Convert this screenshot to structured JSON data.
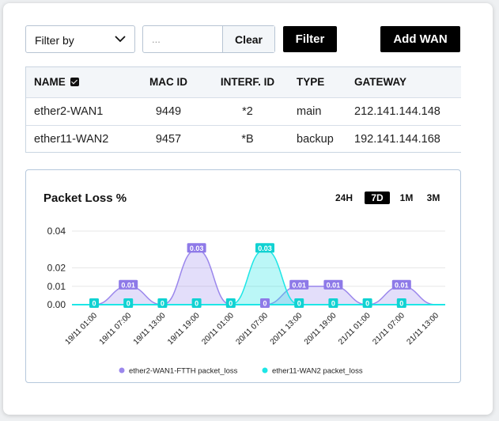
{
  "filters": {
    "select_label": "Filter by",
    "search_placeholder": "...",
    "clear_label": "Clear",
    "filter_label": "Filter",
    "add_wan_label": "Add WAN"
  },
  "table": {
    "headers": {
      "name": "NAME",
      "mac": "MAC ID",
      "interf": "INTERF. ID",
      "type": "TYPE",
      "gateway": "GATEWAY"
    },
    "rows": [
      {
        "name": "ether2-WAN1",
        "mac": "9449",
        "interf": "*2",
        "type": "main",
        "gateway": "212.141.144.148"
      },
      {
        "name": "ether11-WAN2",
        "mac": "9457",
        "interf": "*B",
        "type": "backup",
        "gateway": "192.141.144.168"
      }
    ]
  },
  "chart": {
    "title": "Packet Loss %",
    "ranges": [
      "24H",
      "7D",
      "1M",
      "3M"
    ],
    "active_range": "7D"
  },
  "colors": {
    "series1": "#9b87ec",
    "series2": "#1ee6e6",
    "label1": "#8e7ae8",
    "label2": "#11d2d2"
  },
  "chart_data": {
    "type": "area",
    "ylim": [
      0,
      0.04
    ],
    "yticks": [
      "0.04",
      "0.02",
      "0.01",
      "0.00"
    ],
    "x": [
      "19/11 01:00",
      "19/11 07:00",
      "19/11 13:00",
      "19/11 19:00",
      "20/11 01:00",
      "20/11 07:00",
      "20/11 13:00",
      "20/11 19:00",
      "21/11 01:00",
      "21/11 07:00",
      "21/11 13:00"
    ],
    "series": [
      {
        "name": "ether2-WAN1-FTTH packet_loss",
        "values": [
          0,
          0.01,
          0,
          0.03,
          0,
          0,
          0.01,
          0.01,
          0,
          0.01,
          0
        ]
      },
      {
        "name": "ether11-WAN2 packet_loss",
        "values": [
          0,
          0,
          0,
          0,
          0,
          0.03,
          0,
          0,
          0,
          0,
          0
        ]
      }
    ],
    "labels1": [
      "",
      "0.01",
      "",
      "0.03",
      "",
      "0",
      "0.01",
      "0.01",
      "",
      "0.01",
      ""
    ],
    "labels2": [
      "0",
      "0",
      "0",
      "0",
      "0",
      "0.03",
      "0",
      "0",
      "0",
      "0",
      ""
    ],
    "legend_position": "bottom"
  }
}
